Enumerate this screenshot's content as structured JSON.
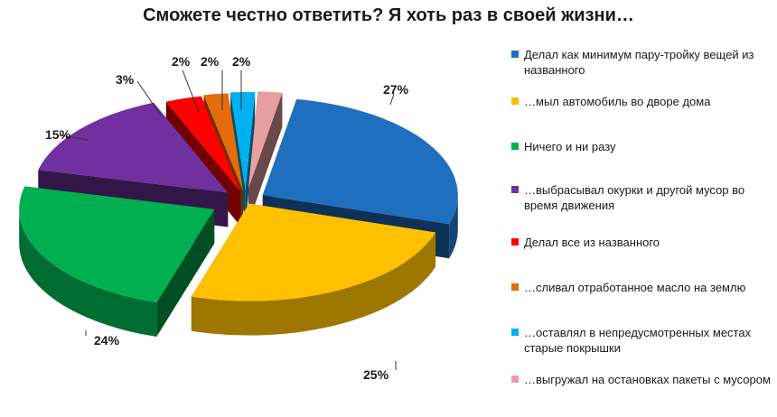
{
  "chart_data": {
    "type": "pie",
    "title": "Сможете честно ответить? Я хоть раз в своей жизни…",
    "series": [
      {
        "label": "Делал как минимум пару-тройку вещей из названного",
        "value": 27,
        "display": "27%",
        "color": "#1f6fbf"
      },
      {
        "label": "…мыл автомобиль во дворе дома",
        "value": 25,
        "display": "25%",
        "color": "#ffc000"
      },
      {
        "label": "Ничего и ни разу",
        "value": 24,
        "display": "24%",
        "color": "#00b050"
      },
      {
        "label": "…выбрасывал окурки и другой мусор во время движения",
        "value": 15,
        "display": "15%",
        "color": "#7030a0"
      },
      {
        "label": "Делал все из названного",
        "value": 3,
        "display": "3%",
        "color": "#ff0000"
      },
      {
        "label": "…сливал отработанное масло на землю",
        "value": 2,
        "display": "2%",
        "color": "#e46c0a"
      },
      {
        "label": "…оставлял в непредусмотренных местах старые покрышки",
        "value": 2,
        "display": "2%",
        "color": "#00b0f0"
      },
      {
        "label": "…выгружал на остановках пакеты с мусором",
        "value": 2,
        "display": "2%",
        "color": "#e6a0a0"
      }
    ],
    "legend_position": "right"
  }
}
